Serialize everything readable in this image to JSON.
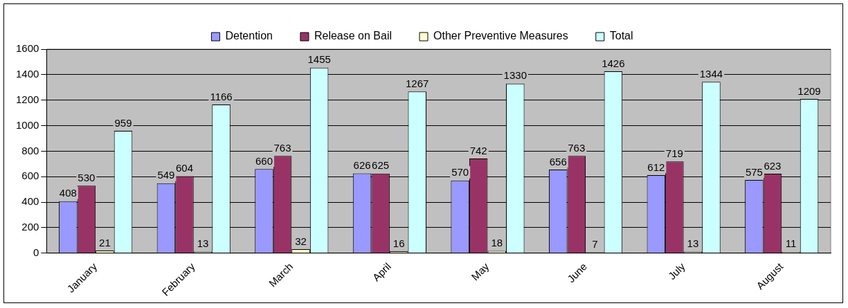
{
  "chart_data": {
    "type": "bar",
    "categories": [
      "January",
      "February",
      "March",
      "April",
      "May",
      "June",
      "July",
      "August"
    ],
    "series": [
      {
        "name": "Detention",
        "color": "#9999ff",
        "values": [
          408,
          549,
          660,
          626,
          570,
          656,
          612,
          575
        ]
      },
      {
        "name": "Release on Bail",
        "color": "#993366",
        "values": [
          530,
          604,
          763,
          625,
          742,
          763,
          719,
          623
        ]
      },
      {
        "name": "Other Preventive Measures",
        "color": "#ffffcc",
        "values": [
          21,
          13,
          32,
          16,
          18,
          7,
          13,
          11
        ]
      },
      {
        "name": "Total",
        "color": "#ccffff",
        "values": [
          959,
          1166,
          1455,
          1267,
          1330,
          1426,
          1344,
          1209
        ]
      }
    ],
    "ylim": [
      0,
      1600
    ],
    "yticks": [
      0,
      200,
      400,
      600,
      800,
      1000,
      1200,
      1400,
      1600
    ],
    "grid": "y",
    "legend": "top",
    "data_labels": true
  }
}
